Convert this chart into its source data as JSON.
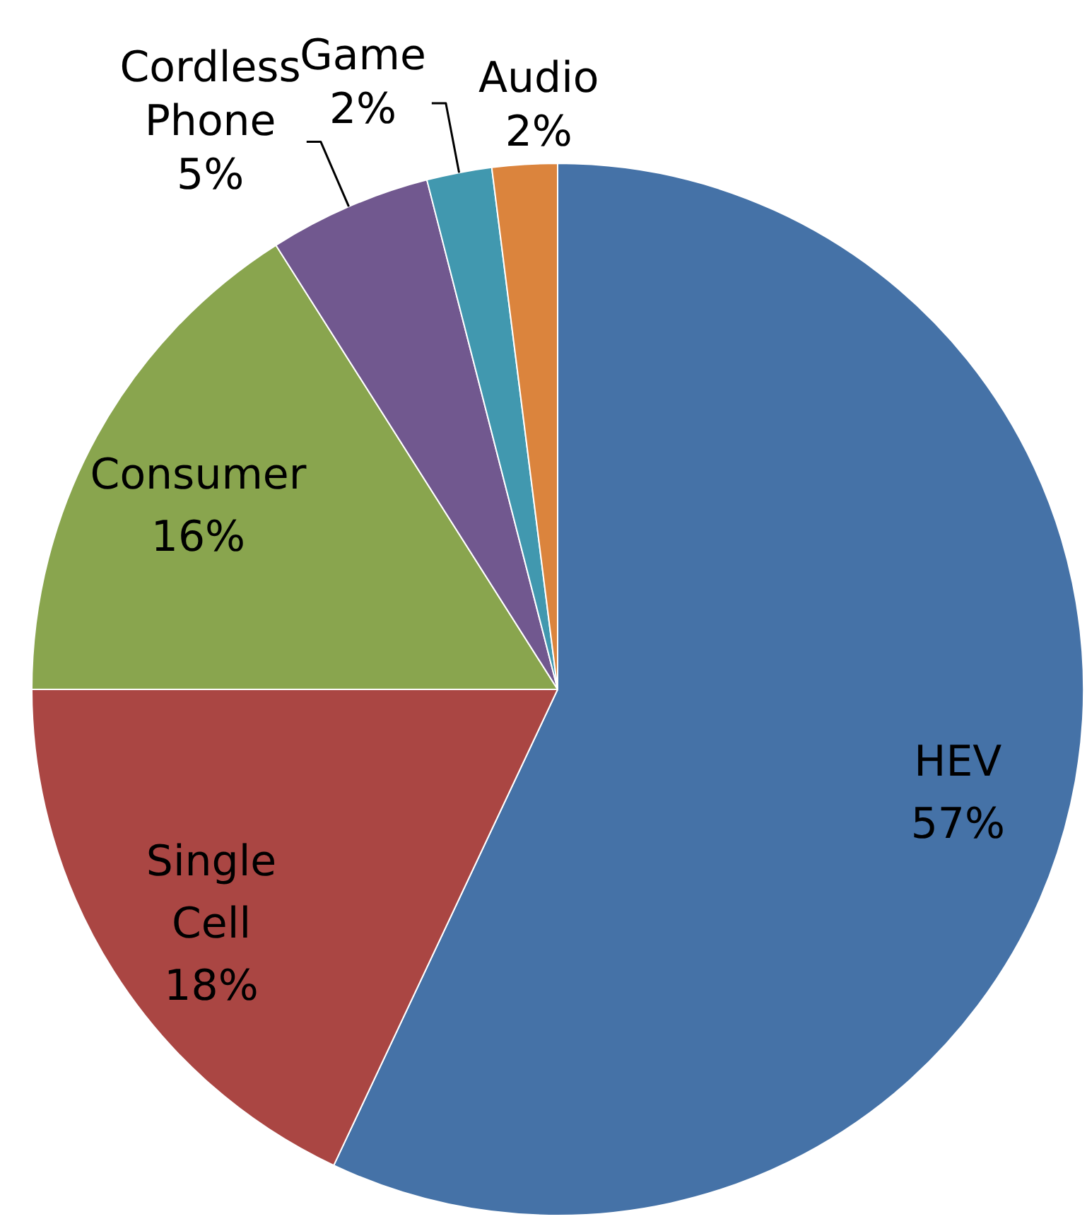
{
  "chart_data": {
    "type": "pie",
    "categories": [
      "HEV",
      "Single Cell",
      "Consumer",
      "Cordless Phone",
      "Game",
      "Audio"
    ],
    "values": [
      57,
      18,
      16,
      5,
      2,
      2
    ],
    "colors": [
      "#4572a7",
      "#aa4643",
      "#89a54e",
      "#71588f",
      "#4198af",
      "#db843d"
    ],
    "value_labels": [
      "57%",
      "18%",
      "16%",
      "5%",
      "2%",
      "2%"
    ]
  }
}
